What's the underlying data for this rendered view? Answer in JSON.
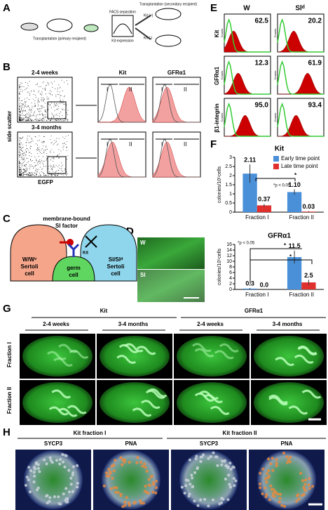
{
  "panel_labels": [
    "A",
    "B",
    "C",
    "D",
    "E",
    "F",
    "G",
    "H"
  ],
  "a": {
    "primary": "Transplantation (primary recipient)",
    "facs": "FACS separation",
    "kit_expression": "Kit expression",
    "kit_pos": "Kit (+)",
    "kit_neg": "Kit (-)",
    "secondary": "Transplantation (secondary recipient)"
  },
  "b": {
    "rows": [
      "2-4 weeks",
      "3-4 months"
    ],
    "y_label": "side scatter",
    "x_label": "EGFP",
    "columns": [
      "Kit",
      "GFRα1"
    ],
    "gates": [
      "I",
      "II"
    ]
  },
  "c": {
    "factor": [
      "membrane-bound",
      "Sl factor"
    ],
    "left_cell": [
      "W/Wᵛ",
      "Sertoli",
      "cell"
    ],
    "germ_cell": [
      "germ",
      "cell"
    ],
    "receptor": "Kit",
    "right_cell": [
      "Sl/Slᵈ",
      "Sertoli",
      "cell"
    ]
  },
  "d": {
    "labels": [
      "W",
      "Sl"
    ]
  },
  "e": {
    "columns": [
      "W",
      "Slᵈ"
    ],
    "rows": [
      "Kit",
      "GFRα1",
      "β1-integrin"
    ],
    "axis_label": "Counts",
    "percentages": [
      [
        "62.5",
        "20.2"
      ],
      [
        "12.3",
        "61.9"
      ],
      [
        "95.0",
        "93.4"
      ]
    ]
  },
  "f": {
    "charts": [
      {
        "type": "bar",
        "title": "Kit",
        "y_label": "colonies/10⁵cells",
        "categories": [
          "Fraction I",
          "Fraction II"
        ],
        "ylim": [
          0,
          3
        ],
        "yticks": [
          0,
          0.5,
          1,
          1.5,
          2,
          2.5,
          3
        ],
        "series": [
          {
            "name": "Early time point",
            "color": "#4a90d9",
            "values": [
              2.11,
              1.1
            ],
            "value_labels": [
              "2.11",
              "1.10"
            ],
            "errors": [
              0.5,
              0.15
            ]
          },
          {
            "name": "Late time point",
            "color": "#e0302e",
            "values": [
              0.37,
              0.03
            ],
            "value_labels": [
              "0.37",
              "0.03"
            ],
            "errors": [
              0.08,
              0.02
            ]
          }
        ],
        "annotations": [
          "*",
          "*p < 0.05"
        ]
      },
      {
        "type": "bar",
        "title": "GFRα1",
        "y_label": "colonies/10⁵cells",
        "categories": [
          "Fraction I",
          "Fraction II"
        ],
        "ylim": [
          0,
          16
        ],
        "yticks": [
          0,
          2,
          4,
          6,
          8,
          10,
          12,
          14,
          16
        ],
        "series": [
          {
            "name": "Early time point",
            "color": "#4a90d9",
            "values": [
              0.3,
              11.5
            ],
            "value_labels": [
              "0.3",
              "11.5"
            ],
            "errors": [
              0.2,
              2.3
            ]
          },
          {
            "name": "Late time point",
            "color": "#e0302e",
            "values": [
              0,
              2.5
            ],
            "value_labels": [
              "0.0",
              "2.5"
            ],
            "errors": [
              0,
              0.9
            ]
          }
        ],
        "annotations": [
          "*",
          "*p < 0.05"
        ]
      }
    ]
  },
  "g": {
    "groups": [
      "Kit",
      "GFRα1"
    ],
    "ages": [
      "2-4 weeks",
      "3-4 months"
    ],
    "rows": [
      "Fraction I",
      "Fraction II"
    ]
  },
  "h": {
    "groups": [
      "Kit fraction I",
      "Kit fraction II"
    ],
    "stains": [
      "SYCP3",
      "PNA"
    ]
  }
}
